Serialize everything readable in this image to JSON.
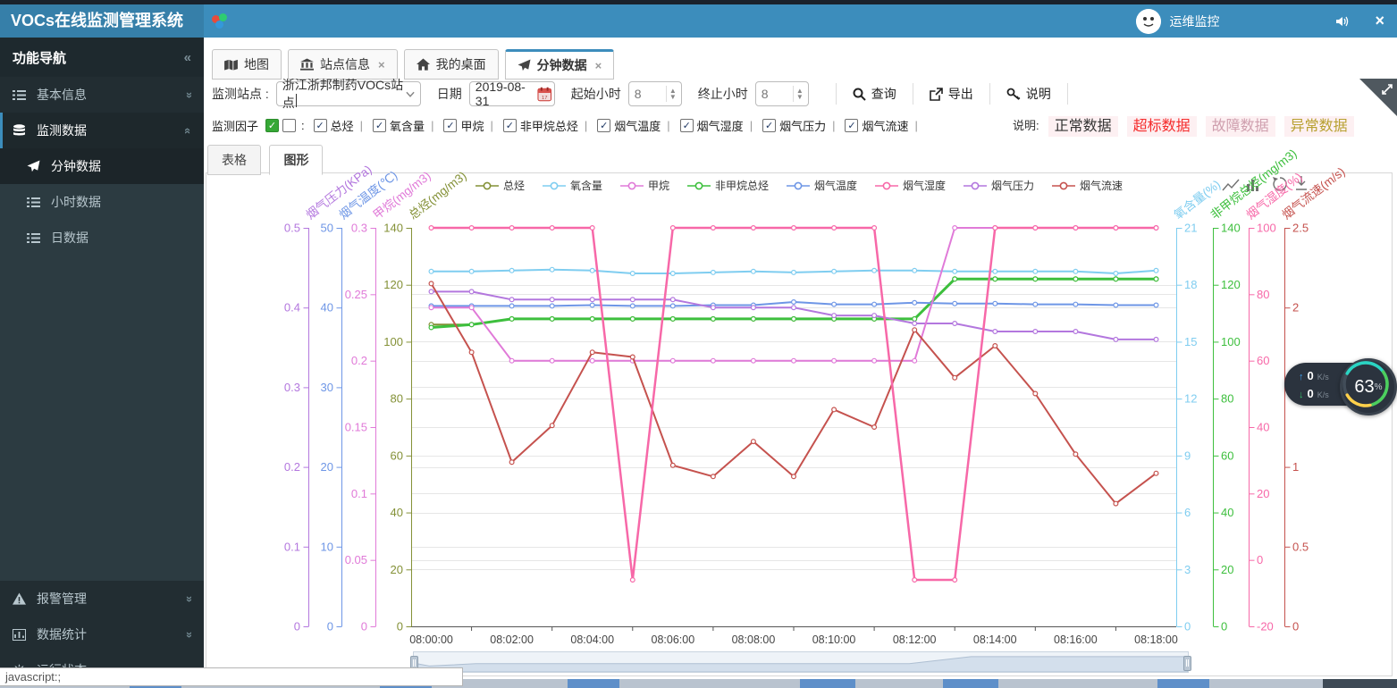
{
  "header": {
    "title": "VOCs在线监测管理系统",
    "user_name": "运维监控"
  },
  "sidebar": {
    "nav_title": "功能导航",
    "items": [
      "基本信息",
      "监测数据",
      "分钟数据",
      "小时数据",
      "日数据",
      "报警管理",
      "数据统计",
      "运行状态"
    ]
  },
  "tabs": {
    "items": [
      {
        "label": "地图",
        "closable": false,
        "active": false
      },
      {
        "label": "站点信息",
        "closable": true,
        "active": false
      },
      {
        "label": "我的桌面",
        "closable": false,
        "active": false
      },
      {
        "label": "分钟数据",
        "closable": true,
        "active": true
      }
    ]
  },
  "filter": {
    "station_label": "监测站点 :",
    "station_value": "浙江浙邦制药VOCs站点",
    "date_label": "日期",
    "date_value": "2019-08-31",
    "start_label": "起始小时",
    "start_value": "8",
    "end_label": "终止小时",
    "end_value": "8",
    "query_label": "查询",
    "export_label": "导出",
    "help_label": "说明"
  },
  "factors": {
    "label": "监测因子",
    "items": [
      "总烃",
      "氧含量",
      "甲烷",
      "非甲烷总烃",
      "烟气温度",
      "烟气湿度",
      "烟气压力",
      "烟气流速"
    ]
  },
  "data_note": {
    "label": "说明:",
    "items": [
      {
        "text": "正常数据",
        "color": "#333333"
      },
      {
        "text": "超标数据",
        "color": "#f52c2c"
      },
      {
        "text": "故障数据",
        "color": "#cf9fae"
      },
      {
        "text": "异常数据",
        "color": "#b8a030"
      }
    ]
  },
  "subtabs": {
    "items": [
      "表格",
      "图形"
    ],
    "active_index": 1
  },
  "net_widget": {
    "up_value": "0",
    "up_unit": "K/s",
    "down_value": "0",
    "down_unit": "K/s",
    "percent": "63",
    "percent_suffix": "%"
  },
  "statusbar": {
    "text": "javascript:;"
  },
  "chart_data": {
    "type": "line",
    "x": [
      "08:00:00",
      "08:01:00",
      "08:02:00",
      "08:03:00",
      "08:04:00",
      "08:05:00",
      "08:06:00",
      "08:07:00",
      "08:08:00",
      "08:09:00",
      "08:10:00",
      "08:11:00",
      "08:12:00",
      "08:13:00",
      "08:14:00",
      "08:15:00",
      "08:16:00",
      "08:17:00",
      "08:18:00"
    ],
    "x_label_every": 2,
    "grid": true,
    "legend_position": "top",
    "series": [
      {
        "name": "总烃",
        "axis_name": "总烃(mg/m3)",
        "color": "#849137",
        "side": "left",
        "axis_x": 460,
        "min": 0,
        "max": 140,
        "ticks": [
          0,
          20,
          40,
          60,
          80,
          100,
          120,
          140
        ],
        "z": 1,
        "width": 2,
        "values": [
          106,
          106,
          108,
          108,
          108,
          108,
          108,
          108,
          108,
          108,
          108,
          108,
          108,
          122,
          122,
          122,
          122,
          122,
          122
        ]
      },
      {
        "name": "氧含量",
        "axis_name": "氧含量(%)",
        "color": "#7fcdf0",
        "side": "right",
        "axis_x": 1316,
        "min": 0,
        "max": 21,
        "ticks": [
          0,
          3,
          6,
          9,
          12,
          15,
          18,
          21
        ],
        "z": 3,
        "width": 2,
        "values": [
          18.7,
          18.7,
          18.75,
          18.8,
          18.75,
          18.6,
          18.6,
          18.65,
          18.7,
          18.65,
          18.7,
          18.75,
          18.75,
          18.7,
          18.7,
          18.7,
          18.7,
          18.6,
          18.75
        ]
      },
      {
        "name": "甲烷",
        "axis_name": "甲烷(mg/m3)",
        "color": "#e07ad8",
        "side": "left",
        "axis_x": 420,
        "min": 0,
        "max": 0.3,
        "ticks": [
          0,
          0.05,
          0.1,
          0.15,
          0.2,
          0.25,
          0.3
        ],
        "z": 6,
        "width": 2,
        "values": [
          0.24,
          0.24,
          0.2,
          0.2,
          0.2,
          0.2,
          0.2,
          0.2,
          0.2,
          0.2,
          0.2,
          0.2,
          0.2,
          0.3,
          0.3,
          0.3,
          0.3,
          0.3,
          0.3
        ]
      },
      {
        "name": "非甲烷总烃",
        "axis_name": "非甲烷总烃(mg/m3)",
        "color": "#3dbf3d",
        "side": "right",
        "axis_x": 1357,
        "min": 0,
        "max": 140,
        "ticks": [
          0,
          20,
          40,
          60,
          80,
          100,
          120,
          140
        ],
        "z": 2,
        "width": 3,
        "values": [
          105,
          106,
          108,
          108,
          108,
          108,
          108,
          108,
          108,
          108,
          108,
          108,
          108,
          122,
          122,
          122,
          122,
          122,
          122
        ]
      },
      {
        "name": "烟气温度",
        "axis_name": "烟气温度(℃)",
        "color": "#6e96e6",
        "side": "left",
        "axis_x": 382,
        "min": 0,
        "max": 50,
        "ticks": [
          0,
          10,
          20,
          30,
          40,
          50
        ],
        "z": 4,
        "width": 2,
        "values": [
          40.2,
          40.2,
          40.2,
          40.2,
          40.3,
          40.2,
          40.2,
          40.3,
          40.3,
          40.7,
          40.4,
          40.4,
          40.6,
          40.5,
          40.5,
          40.4,
          40.4,
          40.3,
          40.3
        ]
      },
      {
        "name": "烟气湿度",
        "axis_name": "烟气湿度(%)",
        "color": "#f768a8",
        "side": "right",
        "axis_x": 1397,
        "min": -20,
        "max": 100,
        "ticks": [
          -20,
          0,
          20,
          40,
          60,
          80,
          100
        ],
        "z": 8,
        "width": 2.5,
        "values": [
          100,
          100,
          100,
          100,
          100,
          -6,
          100,
          100,
          100,
          100,
          100,
          100,
          -6,
          -6,
          100,
          100,
          100,
          100,
          100
        ]
      },
      {
        "name": "烟气压力",
        "axis_name": "烟气压力(KPa)",
        "color": "#b377de",
        "side": "left",
        "axis_x": 345,
        "min": 0,
        "max": 0.5,
        "ticks": [
          0,
          0.1,
          0.2,
          0.3,
          0.4,
          0.5
        ],
        "z": 5,
        "width": 2,
        "values": [
          0.42,
          0.42,
          0.41,
          0.41,
          0.41,
          0.41,
          0.41,
          0.4,
          0.4,
          0.4,
          0.39,
          0.39,
          0.38,
          0.38,
          0.37,
          0.37,
          0.37,
          0.36,
          0.36
        ]
      },
      {
        "name": "烟气流速",
        "axis_name": "烟气流速(m/s)",
        "color": "#c5524e",
        "side": "right",
        "axis_x": 1437,
        "min": 0,
        "max": 2.5,
        "ticks": [
          0,
          0.5,
          1,
          1.5,
          2,
          2.5
        ],
        "z": 7,
        "width": 2,
        "values": [
          2.15,
          1.72,
          1.03,
          1.26,
          1.72,
          1.69,
          1.01,
          0.94,
          1.16,
          0.94,
          1.36,
          1.25,
          1.86,
          1.56,
          1.76,
          1.46,
          1.08,
          0.77,
          0.96
        ]
      }
    ]
  }
}
